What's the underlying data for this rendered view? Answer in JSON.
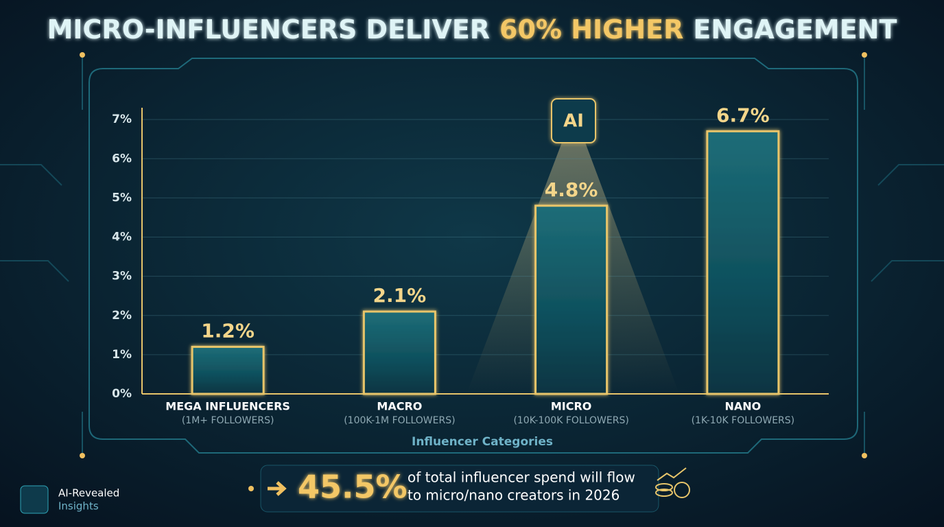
{
  "chart_data": {
    "type": "bar",
    "title": {
      "lead": "MICRO-INFLUENCERS DELIVER",
      "highlight": "60% HIGHER",
      "tail": "ENGAGEMENT"
    },
    "categories": [
      "MEGA INFLUENCERS",
      "MACRO",
      "MICRO",
      "NANO"
    ],
    "category_notes": [
      "(1M+ FOLLOWERS)",
      "(100K-1M FOLLOWERS)",
      "(10K-100K FOLLOWERS)",
      "(1K-10K FOLLOWERS)"
    ],
    "values": [
      1.2,
      2.1,
      4.8,
      6.7
    ],
    "value_labels": [
      "1.2%",
      "2.1%",
      "4.8%",
      "6.7%"
    ],
    "color": "#e8c56a",
    "x_label": "Influencer Categories",
    "ylim": [
      0,
      7.3
    ],
    "yticks": [
      {
        "value": 0,
        "label": "0%"
      },
      {
        "value": 1,
        "label": "1%"
      },
      {
        "value": 2,
        "label": "2%"
      },
      {
        "value": 3,
        "label": "3%"
      },
      {
        "value": 4,
        "label": "4%"
      },
      {
        "value": 5,
        "label": "5%"
      },
      {
        "value": 6,
        "label": "6%"
      },
      {
        "value": 7,
        "label": "7%"
      }
    ],
    "grid": true,
    "chip_label": "AI",
    "callout": {
      "figure": "45.5%",
      "lines": [
        "of total influencer spend will flow",
        "to micro/nano creators in 2026"
      ]
    },
    "brand": [
      "AI-Revealed",
      "Insights"
    ]
  }
}
